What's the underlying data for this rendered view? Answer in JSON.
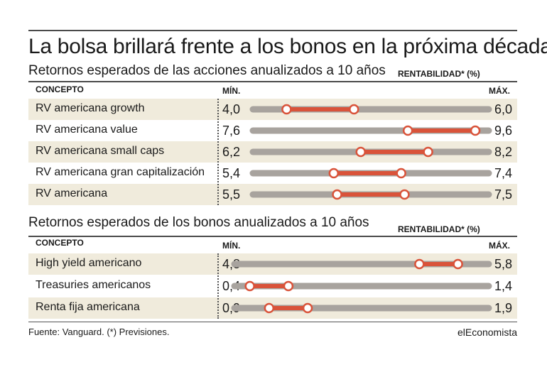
{
  "title": "La bolsa brillará frente a los bonos en la próxima década",
  "source": "Fuente: Vanguard. (*) Previsiones.",
  "brand": "elEconomista",
  "colors": {
    "track": "#a8a39e",
    "range": "#d9533a",
    "shade": "#f0ebdc",
    "text": "#1a1a1a"
  },
  "chart_data": [
    {
      "type": "range",
      "title": "Retornos esperados de las acciones anualizados a 10 años",
      "header_concept": "CONCEPTO",
      "header_value": "RENTABILIDAD* (%)",
      "min_label": "MÍN.",
      "max_label": "MÁX.",
      "rows": [
        {
          "label": "RV americana growth",
          "min": 4.0,
          "max": 6.0,
          "min_text": "4,0",
          "max_text": "6,0"
        },
        {
          "label": "RV americana value",
          "min": 7.6,
          "max": 9.6,
          "min_text": "7,6",
          "max_text": "9,6"
        },
        {
          "label": "RV americana small caps",
          "min": 6.2,
          "max": 8.2,
          "min_text": "6,2",
          "max_text": "8,2"
        },
        {
          "label": "RV americana gran capitalización",
          "min": 5.4,
          "max": 7.4,
          "min_text": "5,4",
          "max_text": "7,4"
        },
        {
          "label": "RV americana",
          "min": 5.5,
          "max": 7.5,
          "min_text": "5,5",
          "max_text": "7,5"
        }
      ]
    },
    {
      "type": "range",
      "title": "Retornos esperados de los bonos anualizados a 10 años",
      "header_concept": "CONCEPTO",
      "header_value": "RENTABILIDAD* (%)",
      "min_label": "MÍN.",
      "max_label": "MÁX.",
      "rows": [
        {
          "label": "High yield americano",
          "min": 4.8,
          "max": 5.8,
          "min_text": "4,8",
          "max_text": "5,8"
        },
        {
          "label": "Treasuries americanos",
          "min": 0.4,
          "max": 1.4,
          "min_text": "0,4",
          "max_text": "1,4"
        },
        {
          "label": "Renta fija americana",
          "min": 0.9,
          "max": 1.9,
          "min_text": "0,9",
          "max_text": "1,9"
        }
      ]
    }
  ]
}
